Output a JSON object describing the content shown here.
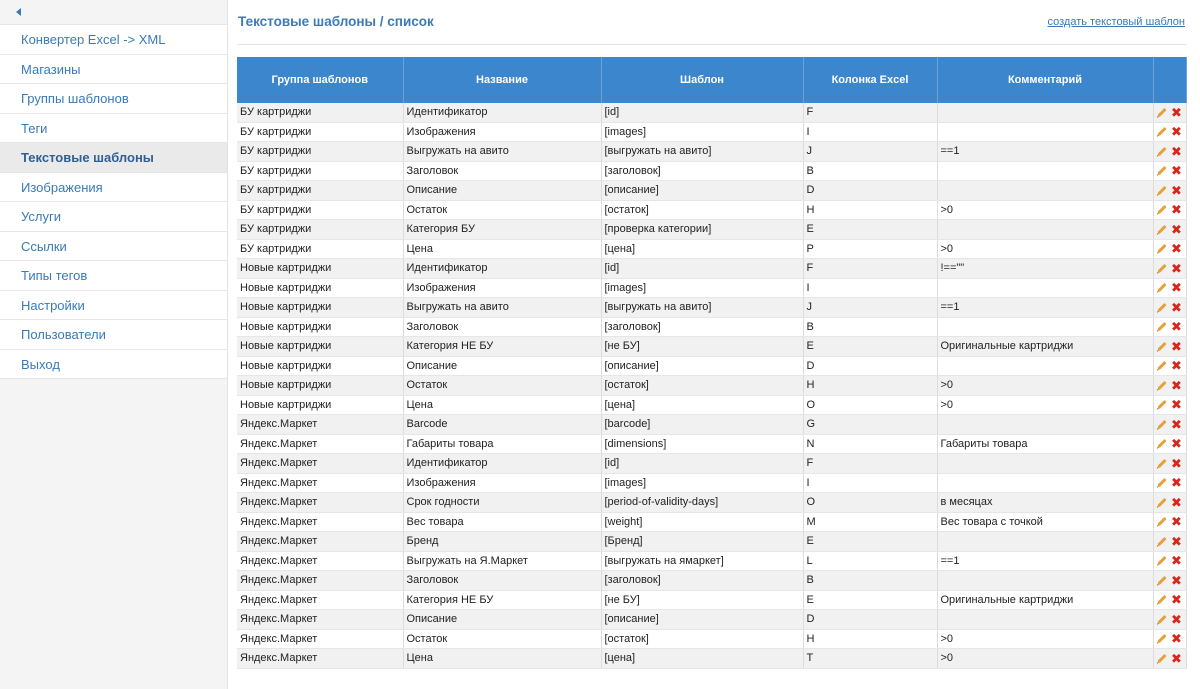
{
  "sidebar": {
    "items": [
      {
        "label": "Конвертер Excel -> XML",
        "active": false
      },
      {
        "label": "Магазины",
        "active": false
      },
      {
        "label": "Группы шаблонов",
        "active": false
      },
      {
        "label": "Теги",
        "active": false
      },
      {
        "label": "Текстовые шаблоны",
        "active": true
      },
      {
        "label": "Изображения",
        "active": false
      },
      {
        "label": "Услуги",
        "active": false
      },
      {
        "label": "Ссылки",
        "active": false
      },
      {
        "label": "Типы тегов",
        "active": false
      },
      {
        "label": "Настройки",
        "active": false
      },
      {
        "label": "Пользователи",
        "active": false
      },
      {
        "label": "Выход",
        "active": false
      }
    ]
  },
  "header": {
    "title": "Текстовые шаблоны / список",
    "create_link": "создать текстовый шаблон"
  },
  "table": {
    "columns": [
      "Группа шаблонов",
      "Название",
      "Шаблон",
      "Колонка Excel",
      "Комментарий",
      ""
    ],
    "rows": [
      [
        "БУ картриджи",
        "Идентификатор",
        "[id]",
        "F",
        ""
      ],
      [
        "БУ картриджи",
        "Изображения",
        "[images]",
        "I",
        ""
      ],
      [
        "БУ картриджи",
        "Выгружать на авито",
        "[выгружать на авито]",
        "J",
        "==1"
      ],
      [
        "БУ картриджи",
        "Заголовок",
        "[заголовок]",
        "B",
        ""
      ],
      [
        "БУ картриджи",
        "Описание",
        "[описание]",
        "D",
        ""
      ],
      [
        "БУ картриджи",
        "Остаток",
        "[остаток]",
        "H",
        ">0"
      ],
      [
        "БУ картриджи",
        "Категория БУ",
        "[проверка категории]",
        "E",
        ""
      ],
      [
        "БУ картриджи",
        "Цена",
        "[цена]",
        "P",
        ">0"
      ],
      [
        "Новые картриджи",
        "Идентификатор",
        "[id]",
        "F",
        "!==\"\""
      ],
      [
        "Новые картриджи",
        "Изображения",
        "[images]",
        "I",
        ""
      ],
      [
        "Новые картриджи",
        "Выгружать на авито",
        "[выгружать на авито]",
        "J",
        "==1"
      ],
      [
        "Новые картриджи",
        "Заголовок",
        "[заголовок]",
        "B",
        ""
      ],
      [
        "Новые картриджи",
        "Категория НЕ БУ",
        "[не БУ]",
        "E",
        "Оригинальные картриджи"
      ],
      [
        "Новые картриджи",
        "Описание",
        "[описание]",
        "D",
        ""
      ],
      [
        "Новые картриджи",
        "Остаток",
        "[остаток]",
        "H",
        ">0"
      ],
      [
        "Новые картриджи",
        "Цена",
        "[цена]",
        "O",
        ">0"
      ],
      [
        "Яндекс.Маркет",
        "Barcode",
        "[barcode]",
        "G",
        ""
      ],
      [
        "Яндекс.Маркет",
        "Габариты товара",
        "[dimensions]",
        "N",
        "Габариты товара"
      ],
      [
        "Яндекс.Маркет",
        "Идентификатор",
        "[id]",
        "F",
        ""
      ],
      [
        "Яндекс.Маркет",
        "Изображения",
        "[images]",
        "I",
        ""
      ],
      [
        "Яндекс.Маркет",
        "Срок годности",
        "[period-of-validity-days]",
        "O",
        "в месяцах"
      ],
      [
        "Яндекс.Маркет",
        "Вес товара",
        "[weight]",
        "M",
        "Вес товара с точкой"
      ],
      [
        "Яндекс.Маркет",
        "Бренд",
        "[Бренд]",
        "E",
        ""
      ],
      [
        "Яндекс.Маркет",
        "Выгружать на Я.Маркет",
        "[выгружать на ямаркет]",
        "L",
        "==1"
      ],
      [
        "Яндекс.Маркет",
        "Заголовок",
        "[заголовок]",
        "B",
        ""
      ],
      [
        "Яндекс.Маркет",
        "Категория НЕ БУ",
        "[не БУ]",
        "E",
        "Оригинальные картриджи"
      ],
      [
        "Яндекс.Маркет",
        "Описание",
        "[описание]",
        "D",
        ""
      ],
      [
        "Яндекс.Маркет",
        "Остаток",
        "[остаток]",
        "H",
        ">0"
      ],
      [
        "Яндекс.Маркет",
        "Цена",
        "[цена]",
        "T",
        ">0"
      ]
    ]
  },
  "icons": {
    "collapse": "chevron-left-icon",
    "edit": "pencil-icon",
    "delete": "delete-x-icon"
  },
  "colors": {
    "header_bg": "#3c86cd",
    "link": "#3a78b6",
    "delete": "#d9261c",
    "edit": "#e6a13a"
  }
}
